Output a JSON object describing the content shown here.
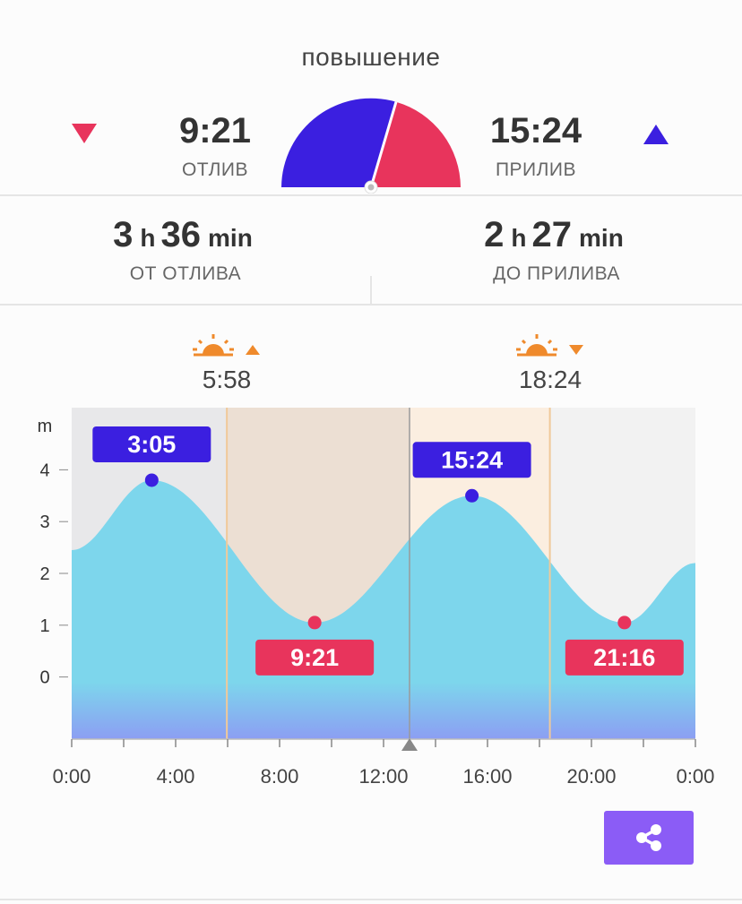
{
  "header": {
    "status": "повышение",
    "low": {
      "time": "9:21",
      "label": "ОТЛИВ",
      "icon": "down-triangle-icon",
      "color": "#e8345c"
    },
    "high": {
      "time": "15:24",
      "label": "ПРИЛИВ",
      "icon": "up-triangle-icon",
      "color": "#3b1fe0"
    },
    "gauge": {
      "progress": 0.6
    }
  },
  "durations": {
    "from_low": {
      "hours": "3",
      "h_unit": "h",
      "minutes": "36",
      "m_unit": "min",
      "label": "ОТ ОТЛИВА"
    },
    "to_high": {
      "hours": "2",
      "h_unit": "h",
      "minutes": "27",
      "m_unit": "min",
      "label": "ДО ПРИЛИВА"
    }
  },
  "sun": {
    "sunrise": {
      "time": "5:58",
      "icon": "sunrise-icon"
    },
    "sunset": {
      "time": "18:24",
      "icon": "sunset-icon"
    }
  },
  "chart_data": {
    "type": "area",
    "ylabel": "m",
    "yticks": [
      0,
      1,
      2,
      3,
      4
    ],
    "ylim": [
      -1.2,
      5.2
    ],
    "xlim": [
      0,
      24
    ],
    "xtick_labels": [
      "0:00",
      "4:00",
      "8:00",
      "12:00",
      "16:00",
      "20:00",
      "0:00"
    ],
    "extremes": [
      {
        "label": "3:05",
        "x": 3.08,
        "y": 3.8,
        "kind": "high"
      },
      {
        "label": "9:21",
        "x": 9.35,
        "y": 1.05,
        "kind": "low"
      },
      {
        "label": "15:24",
        "x": 15.4,
        "y": 3.5,
        "kind": "high"
      },
      {
        "label": "21:16",
        "x": 21.27,
        "y": 1.05,
        "kind": "low"
      }
    ],
    "series": [
      {
        "x": [
          0,
          3.08,
          9.35,
          15.4,
          21.27,
          24
        ],
        "y": [
          2.45,
          3.8,
          1.05,
          3.5,
          1.05,
          2.2
        ]
      }
    ],
    "current_time": 13.0,
    "sunrise": 5.97,
    "sunset": 18.4,
    "colors": {
      "water_top": "#7dd6ec",
      "water_bottom": "#8c9ef3",
      "night": "#e8e8ea",
      "day_before_now": "#ecdfd3",
      "day_after_now": "#fbeee0",
      "sun_line": "#f0c999",
      "high": "#3b1fe0",
      "low": "#e8345c"
    }
  },
  "share": {
    "icon": "share-icon"
  }
}
